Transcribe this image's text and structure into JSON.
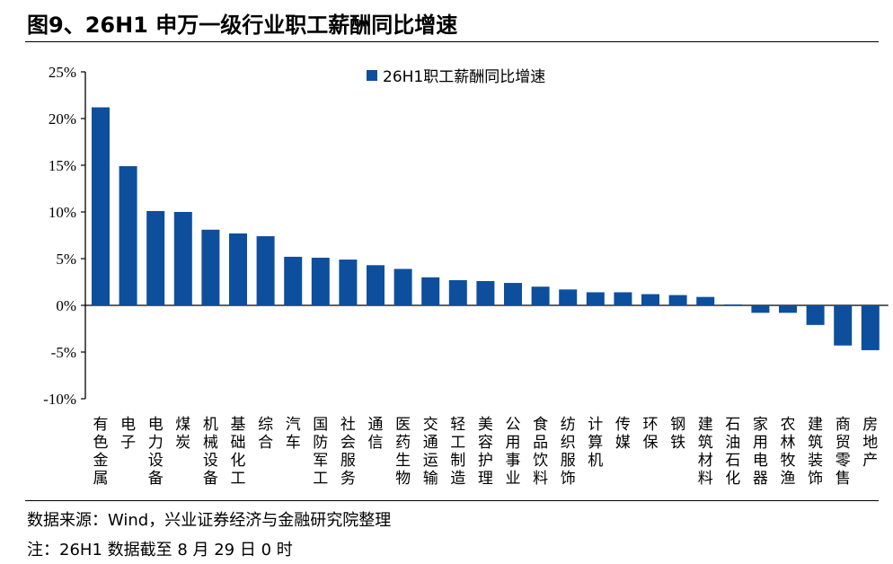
{
  "title": "图9、26H1 申万一级行业职工薪酬同比增速",
  "footer": {
    "source": "数据来源：Wind，兴业证券经济与金融研究院整理",
    "note": "注：26H1 数据截至 8 月 29 日 0 时"
  },
  "colors": {
    "bar": "#0d4f9c",
    "axis": "#000000"
  },
  "chart_data": {
    "type": "bar",
    "categories": [
      "有色金属",
      "电子",
      "电力设备",
      "煤炭",
      "机械设备",
      "基础化工",
      "综合",
      "汽车",
      "国防军工",
      "社会服务",
      "通信",
      "医药生物",
      "交通运输",
      "轻工制造",
      "美容护理",
      "公用事业",
      "食品饮料",
      "纺织服饰",
      "计算机",
      "传媒",
      "环保",
      "钢铁",
      "建筑材料",
      "石油石化",
      "家用电器",
      "农林牧渔",
      "建筑装饰",
      "商贸零售",
      "房地产"
    ],
    "series": [
      {
        "name": "26H1职工薪酬同比增速",
        "values": [
          21.2,
          14.9,
          10.1,
          10.0,
          8.1,
          7.7,
          7.4,
          5.2,
          5.1,
          4.9,
          4.3,
          3.9,
          3.0,
          2.7,
          2.6,
          2.4,
          2.0,
          1.7,
          1.4,
          1.4,
          1.2,
          1.1,
          0.9,
          0.1,
          -0.8,
          -0.8,
          -2.1,
          -4.3,
          -4.8
        ]
      }
    ],
    "unit": "%",
    "ylim": [
      -10,
      25
    ],
    "yticks": [
      -10,
      -5,
      0,
      5,
      10,
      15,
      20,
      25
    ],
    "ytick_labels": [
      "-10%",
      "-5%",
      "0%",
      "5%",
      "10%",
      "15%",
      "20%",
      "25%"
    ],
    "grid": false,
    "legend_position": "top-center"
  }
}
